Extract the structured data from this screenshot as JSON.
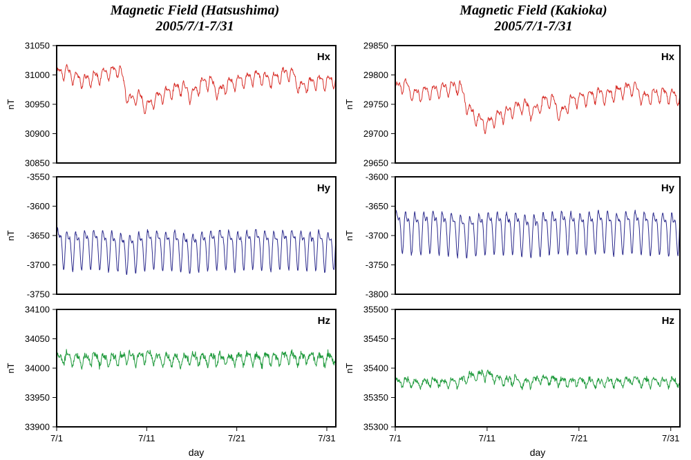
{
  "chart_data": [
    {
      "type": "line",
      "id": "hatsushima-hx",
      "title": "Magnetic Field (Hatsushima)",
      "subtitle": "2005/7/1-7/31",
      "component": "Hx",
      "ylabel": "nT",
      "xlabel": "",
      "color": "#d8302a",
      "ylim": [
        30850,
        31050
      ],
      "yticks": [
        "31050",
        "31000",
        "30950",
        "30900",
        "30850"
      ],
      "xlim": [
        1,
        32
      ],
      "xticks": [],
      "xtick_labels": [],
      "series": [
        {
          "name": "Hx",
          "baseline": 30990,
          "amplitude": 10,
          "noise": 5,
          "x": [
            1,
            2,
            3,
            4,
            5,
            6,
            7,
            8,
            9,
            10,
            11,
            12,
            13,
            14,
            15,
            16,
            17,
            18,
            19,
            20,
            21,
            22,
            23,
            24,
            25,
            26,
            27,
            28,
            29,
            30,
            31,
            32
          ],
          "values": [
            31000,
            31008,
            30995,
            30990,
            30995,
            31000,
            31005,
            31010,
            30955,
            30965,
            30945,
            30960,
            30968,
            30975,
            30980,
            30965,
            30985,
            30990,
            30970,
            30985,
            30988,
            30992,
            30998,
            30995,
            30992,
            31000,
            31005,
            30978,
            30985,
            30990,
            30988,
            30992
          ]
        }
      ]
    },
    {
      "type": "line",
      "id": "kakioka-hx",
      "title": "Magnetic Field (Kakioka)",
      "subtitle": "2005/7/1-7/31",
      "component": "Hx",
      "ylabel": "nT",
      "xlabel": "",
      "color": "#d8302a",
      "ylim": [
        29650,
        29850
      ],
      "yticks": [
        "29850",
        "29800",
        "29750",
        "29700",
        "29650"
      ],
      "xlim": [
        1,
        32
      ],
      "xticks": [],
      "xtick_labels": [],
      "series": [
        {
          "name": "Hx",
          "baseline": 29768,
          "amplitude": 10,
          "noise": 5,
          "x": [
            1,
            2,
            3,
            4,
            5,
            6,
            7,
            8,
            9,
            10,
            11,
            12,
            13,
            14,
            15,
            16,
            17,
            18,
            19,
            20,
            21,
            22,
            23,
            24,
            25,
            26,
            27,
            28,
            29,
            30,
            31,
            32
          ],
          "values": [
            29775,
            29785,
            29765,
            29770,
            29772,
            29775,
            29778,
            29782,
            29740,
            29725,
            29715,
            29728,
            29735,
            29742,
            29750,
            29735,
            29752,
            29760,
            29730,
            29755,
            29760,
            29762,
            29768,
            29765,
            29770,
            29775,
            29780,
            29760,
            29765,
            29768,
            29765,
            29762
          ]
        }
      ]
    },
    {
      "type": "line",
      "id": "hatsushima-hy",
      "component": "Hy",
      "ylabel": "nT",
      "xlabel": "",
      "color": "#2b2a8c",
      "ylim": [
        -3750,
        -3550
      ],
      "yticks": [
        "-3550",
        "-3600",
        "-3650",
        "-3700",
        "-3750"
      ],
      "xlim": [
        1,
        32
      ],
      "xticks": [],
      "xtick_labels": [],
      "series": [
        {
          "name": "Hy",
          "baseline": -3668,
          "amplitude": 28,
          "noise": 4,
          "x": [
            1,
            2,
            3,
            4,
            5,
            6,
            7,
            8,
            9,
            10,
            11,
            12,
            13,
            14,
            15,
            16,
            17,
            18,
            19,
            20,
            21,
            22,
            23,
            24,
            25,
            26,
            27,
            28,
            29,
            30,
            31,
            32
          ],
          "values": [
            -3665,
            -3668,
            -3670,
            -3668,
            -3666,
            -3668,
            -3670,
            -3672,
            -3676,
            -3672,
            -3668,
            -3668,
            -3670,
            -3668,
            -3672,
            -3675,
            -3670,
            -3668,
            -3666,
            -3668,
            -3670,
            -3668,
            -3666,
            -3668,
            -3670,
            -3668,
            -3666,
            -3668,
            -3670,
            -3668,
            -3672,
            -3668
          ]
        }
      ]
    },
    {
      "type": "line",
      "id": "kakioka-hy",
      "component": "Hy",
      "ylabel": "nT",
      "xlabel": "",
      "color": "#2b2a8c",
      "ylim": [
        -3800,
        -3600
      ],
      "yticks": [
        "-3600",
        "-3650",
        "-3700",
        "-3750",
        "-3800"
      ],
      "xlim": [
        1,
        32
      ],
      "xticks": [],
      "xtick_labels": [],
      "series": [
        {
          "name": "Hy",
          "baseline": -3688,
          "amplitude": 30,
          "noise": 4,
          "x": [
            1,
            2,
            3,
            4,
            5,
            6,
            7,
            8,
            9,
            10,
            11,
            12,
            13,
            14,
            15,
            16,
            17,
            18,
            19,
            20,
            21,
            22,
            23,
            24,
            25,
            26,
            27,
            28,
            29,
            30,
            31,
            32
          ],
          "values": [
            -3685,
            -3688,
            -3690,
            -3688,
            -3686,
            -3688,
            -3690,
            -3692,
            -3696,
            -3692,
            -3688,
            -3688,
            -3690,
            -3688,
            -3692,
            -3695,
            -3690,
            -3688,
            -3686,
            -3688,
            -3690,
            -3688,
            -3686,
            -3688,
            -3690,
            -3688,
            -3686,
            -3688,
            -3690,
            -3688,
            -3692,
            -3688
          ]
        }
      ]
    },
    {
      "type": "line",
      "id": "hatsushima-hz",
      "component": "Hz",
      "ylabel": "nT",
      "xlabel": "day",
      "color": "#1f9a3c",
      "ylim": [
        33900,
        34100
      ],
      "yticks": [
        "34100",
        "34050",
        "34000",
        "33950",
        "33900"
      ],
      "xlim": [
        1,
        32
      ],
      "xticks": [
        1,
        11,
        21,
        31
      ],
      "xtick_labels": [
        "7/1",
        "7/11",
        "7/21",
        "7/31"
      ],
      "series": [
        {
          "name": "Hz",
          "baseline": 34016,
          "amplitude": 8,
          "noise": 9,
          "x": [
            1,
            2,
            3,
            4,
            5,
            6,
            7,
            8,
            9,
            10,
            11,
            12,
            13,
            14,
            15,
            16,
            17,
            18,
            19,
            20,
            21,
            22,
            23,
            24,
            25,
            26,
            27,
            28,
            29,
            30,
            31,
            32
          ],
          "values": [
            34015,
            34018,
            34016,
            34014,
            34018,
            34016,
            34015,
            34017,
            34020,
            34018,
            34022,
            34016,
            34014,
            34016,
            34012,
            34018,
            34016,
            34015,
            34018,
            34014,
            34016,
            34018,
            34015,
            34017,
            34016,
            34018,
            34020,
            34016,
            34018,
            34017,
            34016,
            34018
          ]
        }
      ]
    },
    {
      "type": "line",
      "id": "kakioka-hz",
      "component": "Hz",
      "ylabel": "nT",
      "xlabel": "day",
      "color": "#1f9a3c",
      "ylim": [
        35300,
        35500
      ],
      "yticks": [
        "35500",
        "35450",
        "35400",
        "35350",
        "35300"
      ],
      "xlim": [
        1,
        32
      ],
      "xticks": [
        1,
        11,
        21,
        31
      ],
      "xtick_labels": [
        "7/1",
        "7/11",
        "7/21",
        "7/31"
      ],
      "series": [
        {
          "name": "Hz",
          "baseline": 35378,
          "amplitude": 6,
          "noise": 7,
          "x": [
            1,
            2,
            3,
            4,
            5,
            6,
            7,
            8,
            9,
            10,
            11,
            12,
            13,
            14,
            15,
            16,
            17,
            18,
            19,
            20,
            21,
            22,
            23,
            24,
            25,
            26,
            27,
            28,
            29,
            30,
            31,
            32
          ],
          "values": [
            35375,
            35378,
            35376,
            35374,
            35378,
            35376,
            35375,
            35377,
            35385,
            35388,
            35390,
            35382,
            35378,
            35380,
            35372,
            35378,
            35382,
            35380,
            35378,
            35376,
            35378,
            35376,
            35375,
            35377,
            35376,
            35378,
            35380,
            35376,
            35378,
            35377,
            35376,
            35378
          ]
        }
      ]
    }
  ]
}
